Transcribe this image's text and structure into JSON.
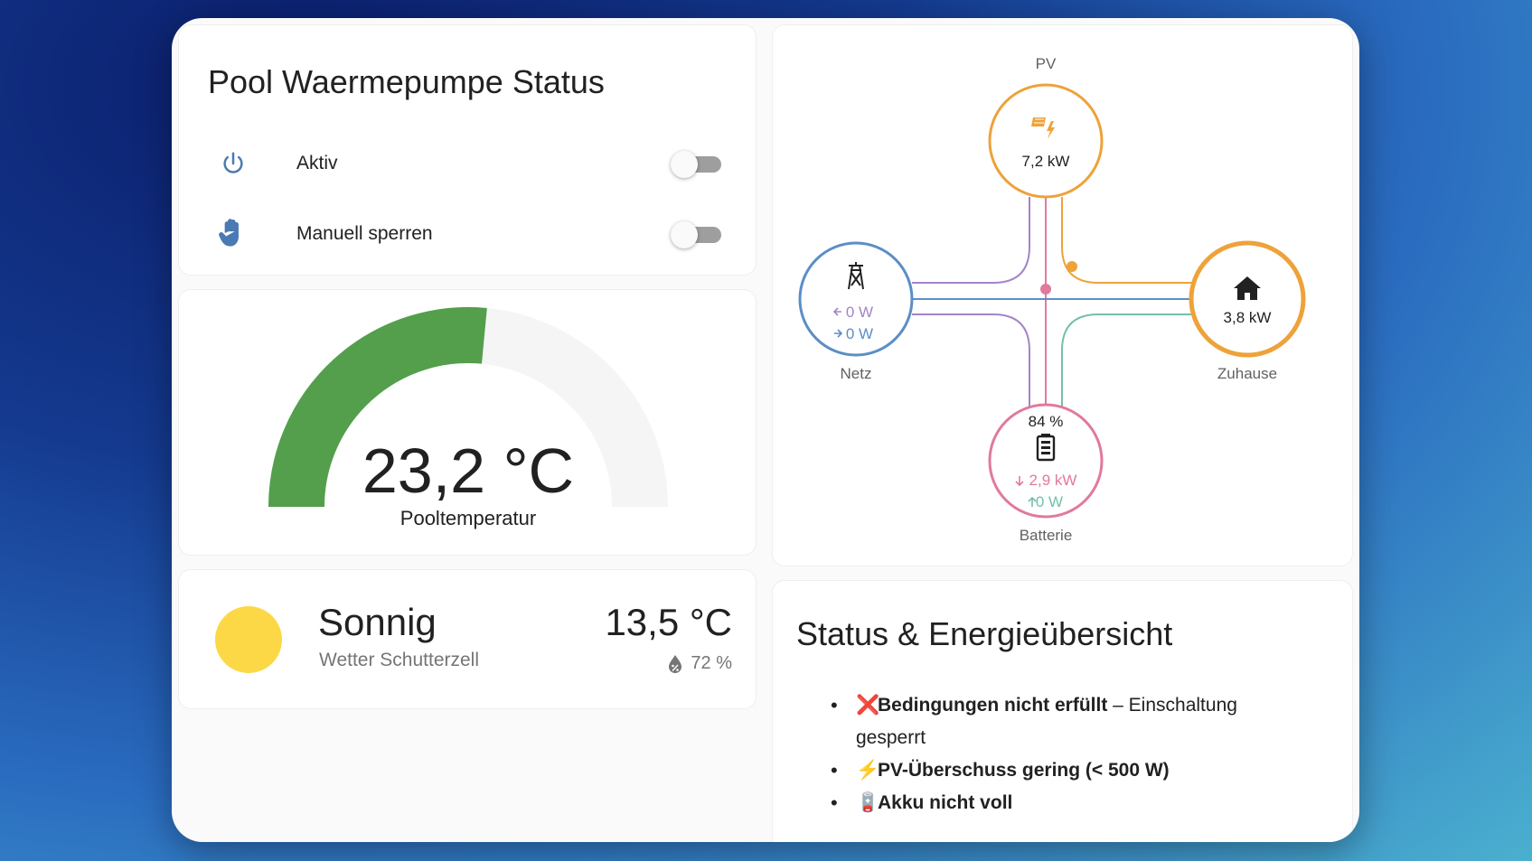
{
  "status_card": {
    "title": "Pool Waermepumpe Status",
    "rows": [
      {
        "label": "Aktiv",
        "icon": "power-icon",
        "state": "off"
      },
      {
        "label": "Manuell sperren",
        "icon": "hand-icon",
        "state": "off"
      }
    ]
  },
  "gauge": {
    "value": "23,2 °C",
    "label": "Pooltemperatur",
    "fill_fraction": 0.53,
    "color": "#539f4c"
  },
  "weather": {
    "condition": "Sonnig",
    "name": "Wetter Schutterzell",
    "temperature": "13,5 °C",
    "humidity": "72 %"
  },
  "energy": {
    "pv": {
      "label": "PV",
      "value": "7,2 kW",
      "color": "#eea23a"
    },
    "grid": {
      "label": "Netz",
      "import": "0 W",
      "export": "0 W",
      "color": "#5b8ec6"
    },
    "home": {
      "label": "Zuhause",
      "value": "3,8 kW",
      "color": "#eea23a"
    },
    "battery": {
      "label": "Batterie",
      "soc": "84 %",
      "discharge": "2,9 kW",
      "charge": "0 W",
      "color": "#e07a9c"
    }
  },
  "summary": {
    "title": "Status & Energieübersicht",
    "items": [
      {
        "emoji": "❌",
        "bold": "Bedingungen nicht erfüllt",
        "rest": " – Einschaltung gesperrt"
      },
      {
        "emoji": "⚡",
        "bold": "PV-Überschuss gering (< 500 W)",
        "rest": ""
      },
      {
        "emoji": "🪫",
        "bold": "Akku nicht voll",
        "rest": ""
      }
    ]
  }
}
